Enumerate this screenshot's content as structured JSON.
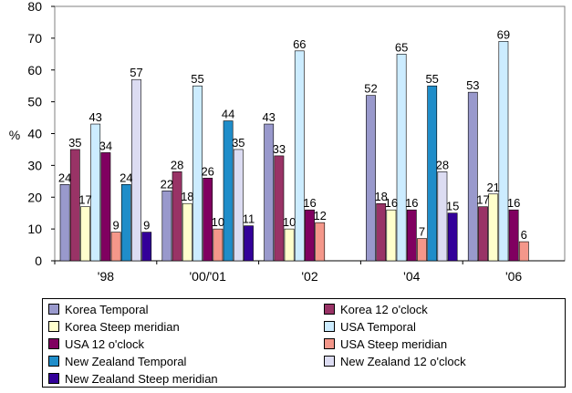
{
  "chart_data": {
    "type": "bar",
    "categories": [
      "'98",
      "'00/'01",
      "'02",
      "'04",
      "'06"
    ],
    "ylabel": "%",
    "ylim": [
      0,
      80
    ],
    "yticks": [
      0,
      10,
      20,
      30,
      40,
      50,
      60,
      70,
      80
    ],
    "grid": false,
    "legend_placement": "bottom",
    "series": [
      {
        "name": "Korea Temporal",
        "color": "#9999cc",
        "values": [
          24,
          22,
          43,
          52,
          53
        ]
      },
      {
        "name": "Korea 12 o'clock",
        "color": "#993366",
        "values": [
          35,
          28,
          33,
          18,
          17
        ]
      },
      {
        "name": "Korea Steep meridian",
        "color": "#ffffcc",
        "values": [
          17,
          18,
          10,
          16,
          21
        ]
      },
      {
        "name": "USA Temporal",
        "color": "#ccecff",
        "values": [
          43,
          55,
          66,
          65,
          69
        ]
      },
      {
        "name": "USA 12 o'clock",
        "color": "#800060",
        "values": [
          34,
          26,
          16,
          16,
          16
        ]
      },
      {
        "name": "USA Steep meridian",
        "color": "#f4978a",
        "values": [
          9,
          10,
          12,
          7,
          6
        ]
      },
      {
        "name": "New Zealand Temporal",
        "color": "#1f8dc9",
        "values": [
          24,
          44,
          null,
          55,
          null
        ]
      },
      {
        "name": "New Zealand 12 o'clock",
        "color": "#dcdcf2",
        "values": [
          57,
          35,
          null,
          28,
          null
        ]
      },
      {
        "name": "New Zealand Steep meridian",
        "color": "#330099",
        "values": [
          9,
          11,
          null,
          15,
          null
        ]
      }
    ]
  }
}
